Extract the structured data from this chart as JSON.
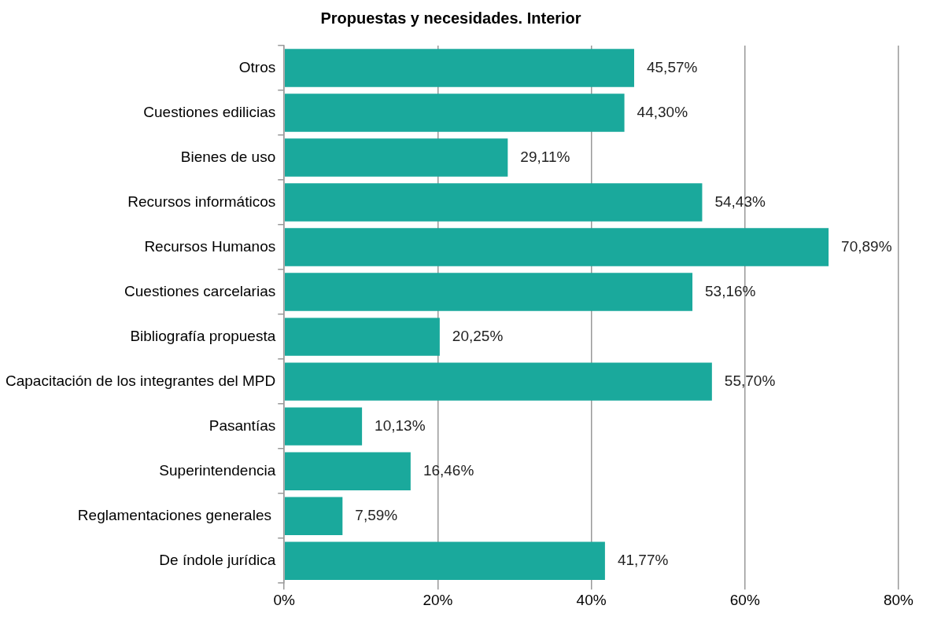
{
  "chart_data": {
    "type": "bar",
    "orientation": "horizontal",
    "title": "Propuestas y necesidades. Interior",
    "categories": [
      "Otros",
      "Cuestiones edilicias",
      "Bienes de uso",
      "Recursos informáticos",
      "Recursos Humanos",
      "Cuestiones carcelarias",
      "Bibliografía propuesta",
      "Capacitación de los integrantes del MPD",
      "Pasantías",
      "Superintendencia",
      "Reglamentaciones generales ",
      "De índole jurídica"
    ],
    "values": [
      45.57,
      44.3,
      29.11,
      54.43,
      70.89,
      53.16,
      20.25,
      55.7,
      10.13,
      16.46,
      7.59,
      41.77
    ],
    "value_labels": [
      "45,57%",
      "44,30%",
      "29,11%",
      "54,43%",
      "70,89%",
      "53,16%",
      "20,25%",
      "55,70%",
      "10,13%",
      "16,46%",
      "7,59%",
      "41,77%"
    ],
    "color": "#1aa99c",
    "xlim": [
      0,
      80
    ],
    "xticks": [
      {
        "value": 0,
        "label": "0%"
      },
      {
        "value": 20,
        "label": "20%"
      },
      {
        "value": 40,
        "label": "40%"
      },
      {
        "value": 60,
        "label": "60%"
      },
      {
        "value": 80,
        "label": "80%"
      }
    ],
    "grid": "x",
    "legend": false
  }
}
